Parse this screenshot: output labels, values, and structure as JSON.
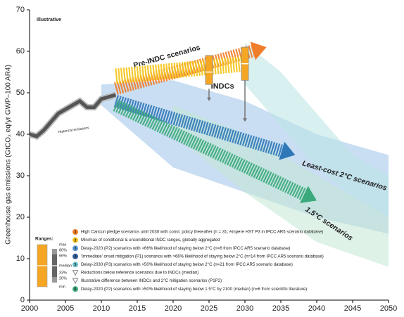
{
  "chart_data": {
    "type": "line",
    "ylabel": "Greenhouse gas emissions (GtCO₂ eq/yr GWP–100 AR4)",
    "annotation": "Illustrative",
    "history_label": "Historical emissions",
    "xlim": [
      2000,
      2050
    ],
    "ylim": [
      0,
      70
    ],
    "xticks": [
      2000,
      2005,
      2010,
      2015,
      2020,
      2025,
      2030,
      2035,
      2040,
      2045,
      2050
    ],
    "yticks": [
      0,
      10,
      20,
      30,
      40,
      50,
      60,
      70
    ],
    "series": [
      {
        "name": "Historical emissions",
        "color": "#555555",
        "x": [
          2000,
          2001,
          2002,
          2003,
          2004,
          2005,
          2006,
          2007,
          2008,
          2009,
          2010,
          2011,
          2012
        ],
        "values": [
          40,
          39.5,
          41,
          43,
          45,
          46,
          47,
          48,
          46.5,
          46.5,
          48.5,
          49,
          49.5
        ]
      },
      {
        "name": "Pre-INDC scenarios",
        "color": "#f07d2a",
        "x": [
          2012,
          2033
        ],
        "values": [
          51,
          61
        ]
      },
      {
        "name": "INDCs",
        "color": "#f5c518",
        "x": [
          2012,
          2030
        ],
        "values": [
          54,
          57
        ]
      },
      {
        "name": "Least-cost 2°C scenarios",
        "color": "#2f78b8",
        "x": [
          2012,
          2037
        ],
        "values": [
          48,
          35
        ]
      },
      {
        "name": "1.5°C scenarios",
        "color": "#3aaa7a",
        "x": [
          2012,
          2040
        ],
        "values": [
          47,
          24
        ]
      }
    ],
    "bands": [
      {
        "color": "#9cc3e8",
        "x": [
          2010,
          2020,
          2030,
          2040,
          2050
        ],
        "lower": [
          47,
          32,
          26,
          20,
          16
        ],
        "upper": [
          52,
          53,
          48,
          40,
          35
        ]
      },
      {
        "color": "#b9e3e6",
        "x": [
          2030,
          2035,
          2040,
          2045,
          2050
        ],
        "lower": [
          52,
          42,
          32,
          25,
          20
        ],
        "upper": [
          62,
          55,
          45,
          35,
          30
        ]
      },
      {
        "color": "#c3e8d5",
        "x": [
          2020,
          2030,
          2040,
          2050
        ],
        "lower": [
          40,
          26,
          14,
          8
        ],
        "upper": [
          47,
          40,
          30,
          20
        ]
      }
    ],
    "indc_ranges": {
      "x": [
        2025,
        2030
      ],
      "min": [
        52,
        53
      ],
      "max": [
        59,
        61
      ],
      "median": [
        55,
        57
      ]
    },
    "reductions": {
      "x": [
        2025,
        2030
      ],
      "from": [
        51,
        53
      ],
      "to": [
        48,
        43
      ]
    },
    "ranges_key": {
      "title": "Ranges:",
      "labels": [
        "max",
        "80%",
        "66%",
        "median",
        "33%",
        "20%",
        "min"
      ]
    },
    "legend": {
      "items": [
        {
          "number": "1",
          "color": "#f07d2a",
          "text": "High Cancun pledge scenarios until 2030 with const. policy thereafter (n = 31; Ampere HST P3 in IPCC AR5 scenario database)"
        },
        {
          "number": "2",
          "color": "#f5c518",
          "text": "Min/max of conditional & unconditional INDC ranges, globally aggregated"
        },
        {
          "number": "3",
          "color": "#5b9bd5",
          "text": "Delay-2020 (P2) scenarios with >66% likelihood of staying below 2°C (n=6 from IPCC AR5 scenario database)"
        },
        {
          "number": "4",
          "color": "#2f5f9e",
          "text": "'Immediate' onset mitigation (P1) scenarios with >66% likelihood of staying below 2°C (n=14 from IPCC AR5 scenario database)"
        },
        {
          "number": "5",
          "color": "#6cc5cf",
          "text": "Delay-2030 (P3) scenarios with >50% likelihood of staying below 2°C (n=21 from IPCC AR5 scenario database)"
        },
        {
          "symbol": "arrow",
          "color": "#888888",
          "text": "Reductions below reference scenarios due to INDCs (median)"
        },
        {
          "symbol": "arrow",
          "color": "#888888",
          "text": "Illustrative difference between INDCs and 2°C mitigation scenarios (P1P2)"
        },
        {
          "number": "6",
          "color": "#3aaa7a",
          "text": "Delay-2020 (P2) scenarios with >50% likelihood of staying below 1.5°C by 2100 (median) (n=6 from scientific literature)"
        }
      ]
    }
  }
}
